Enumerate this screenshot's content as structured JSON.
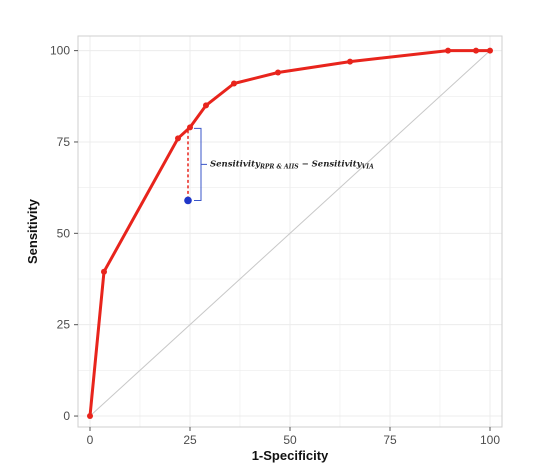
{
  "chart_data": {
    "type": "line",
    "title": "",
    "xlabel": "1-Specificity",
    "ylabel": "Sensitivity",
    "xlim": [
      -3,
      103
    ],
    "ylim": [
      -3,
      104
    ],
    "x_ticks": [
      0,
      25,
      50,
      75,
      100
    ],
    "y_ticks": [
      0,
      25,
      50,
      75,
      100
    ],
    "grid": true,
    "legend": "none",
    "colors": {
      "roc_line": "#e8241c",
      "reference_line": "#c8c8c8",
      "marker": "#1f36c8",
      "bracket": "#3a55c8",
      "grid": "#ececec",
      "panel_border": "#cfcfcf"
    },
    "series": [
      {
        "x": [
          0,
          3.5,
          22,
          25,
          29,
          36,
          47,
          65,
          89.5,
          96.5,
          100
        ],
        "y": [
          0,
          39.5,
          76,
          79,
          85,
          91,
          94,
          97,
          100,
          100,
          100
        ]
      }
    ],
    "reference_line": {
      "x": [
        0,
        100
      ],
      "y": [
        0,
        100
      ]
    },
    "highlight_point": {
      "x": 24.5,
      "y": 59
    },
    "difference_segment": {
      "x": 24.5,
      "y_from": 59,
      "y_to": 79
    },
    "annotation": {
      "part1": "Sensitivity",
      "part1_sub": "RPR & AIIS",
      "minus": " − ",
      "part2": "Sensitivity",
      "part2_sub": "VIA"
    }
  }
}
